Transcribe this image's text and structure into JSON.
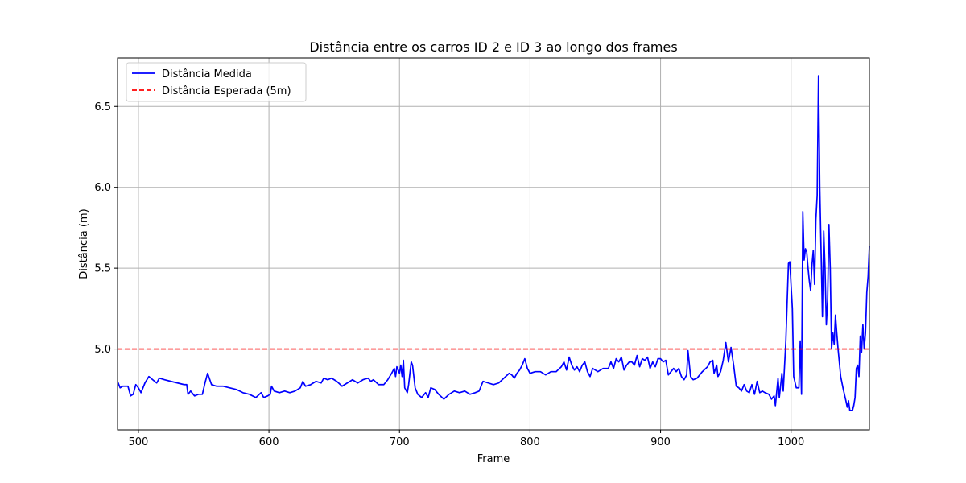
{
  "chart_data": {
    "type": "line",
    "title": "Distância entre os carros ID 2 e ID 3 ao longo dos frames",
    "xlabel": "Frame",
    "ylabel": "Distância (m)",
    "xlim": [
      484,
      1060
    ],
    "ylim": [
      4.5,
      6.8
    ],
    "xticks": [
      500,
      600,
      700,
      800,
      900,
      1000
    ],
    "yticks": [
      5.0,
      5.5,
      6.0,
      6.5
    ],
    "grid": true,
    "legend_position": "top-left",
    "colors": {
      "measured": "#0000ff",
      "expected": "#ff0000",
      "grid": "#b0b0b0"
    },
    "series": [
      {
        "name": "Distância Medida",
        "style": "solid",
        "points": [
          [
            484,
            4.8
          ],
          [
            486,
            4.76
          ],
          [
            488,
            4.77
          ],
          [
            490,
            4.77
          ],
          [
            492,
            4.77
          ],
          [
            494,
            4.71
          ],
          [
            496,
            4.72
          ],
          [
            498,
            4.78
          ],
          [
            500,
            4.76
          ],
          [
            502,
            4.73
          ],
          [
            505,
            4.79
          ],
          [
            508,
            4.83
          ],
          [
            511,
            4.81
          ],
          [
            514,
            4.79
          ],
          [
            516,
            4.82
          ],
          [
            520,
            4.81
          ],
          [
            525,
            4.8
          ],
          [
            530,
            4.79
          ],
          [
            535,
            4.78
          ],
          [
            537,
            4.78
          ],
          [
            538,
            4.72
          ],
          [
            540,
            4.74
          ],
          [
            543,
            4.71
          ],
          [
            546,
            4.72
          ],
          [
            549,
            4.72
          ],
          [
            551,
            4.79
          ],
          [
            553,
            4.85
          ],
          [
            556,
            4.78
          ],
          [
            560,
            4.77
          ],
          [
            565,
            4.77
          ],
          [
            570,
            4.76
          ],
          [
            575,
            4.75
          ],
          [
            580,
            4.73
          ],
          [
            585,
            4.72
          ],
          [
            590,
            4.7
          ],
          [
            594,
            4.73
          ],
          [
            596,
            4.7
          ],
          [
            599,
            4.71
          ],
          [
            601,
            4.72
          ],
          [
            602,
            4.77
          ],
          [
            604,
            4.74
          ],
          [
            608,
            4.73
          ],
          [
            612,
            4.74
          ],
          [
            616,
            4.73
          ],
          [
            620,
            4.74
          ],
          [
            624,
            4.76
          ],
          [
            626,
            4.8
          ],
          [
            628,
            4.77
          ],
          [
            632,
            4.78
          ],
          [
            636,
            4.8
          ],
          [
            640,
            4.79
          ],
          [
            642,
            4.82
          ],
          [
            645,
            4.81
          ],
          [
            648,
            4.82
          ],
          [
            652,
            4.8
          ],
          [
            656,
            4.77
          ],
          [
            660,
            4.79
          ],
          [
            664,
            4.81
          ],
          [
            668,
            4.79
          ],
          [
            672,
            4.81
          ],
          [
            676,
            4.82
          ],
          [
            678,
            4.8
          ],
          [
            680,
            4.81
          ],
          [
            684,
            4.78
          ],
          [
            688,
            4.78
          ],
          [
            691,
            4.81
          ],
          [
            694,
            4.85
          ],
          [
            696,
            4.88
          ],
          [
            697,
            4.83
          ],
          [
            698,
            4.89
          ],
          [
            700,
            4.85
          ],
          [
            701,
            4.9
          ],
          [
            702,
            4.83
          ],
          [
            703,
            4.93
          ],
          [
            704,
            4.76
          ],
          [
            706,
            4.73
          ],
          [
            707,
            4.78
          ],
          [
            709,
            4.92
          ],
          [
            710,
            4.9
          ],
          [
            712,
            4.76
          ],
          [
            714,
            4.72
          ],
          [
            717,
            4.7
          ],
          [
            720,
            4.73
          ],
          [
            722,
            4.7
          ],
          [
            724,
            4.76
          ],
          [
            727,
            4.75
          ],
          [
            730,
            4.72
          ],
          [
            734,
            4.69
          ],
          [
            738,
            4.72
          ],
          [
            742,
            4.74
          ],
          [
            746,
            4.73
          ],
          [
            750,
            4.74
          ],
          [
            754,
            4.72
          ],
          [
            758,
            4.73
          ],
          [
            761,
            4.74
          ],
          [
            764,
            4.8
          ],
          [
            768,
            4.79
          ],
          [
            772,
            4.78
          ],
          [
            776,
            4.79
          ],
          [
            780,
            4.82
          ],
          [
            784,
            4.85
          ],
          [
            786,
            4.84
          ],
          [
            788,
            4.82
          ],
          [
            790,
            4.85
          ],
          [
            792,
            4.87
          ],
          [
            794,
            4.9
          ],
          [
            796,
            4.94
          ],
          [
            798,
            4.88
          ],
          [
            800,
            4.85
          ],
          [
            804,
            4.86
          ],
          [
            808,
            4.86
          ],
          [
            812,
            4.84
          ],
          [
            816,
            4.86
          ],
          [
            820,
            4.86
          ],
          [
            824,
            4.89
          ],
          [
            826,
            4.92
          ],
          [
            828,
            4.87
          ],
          [
            830,
            4.95
          ],
          [
            832,
            4.9
          ],
          [
            834,
            4.87
          ],
          [
            836,
            4.89
          ],
          [
            838,
            4.86
          ],
          [
            840,
            4.9
          ],
          [
            842,
            4.92
          ],
          [
            844,
            4.86
          ],
          [
            846,
            4.83
          ],
          [
            848,
            4.88
          ],
          [
            852,
            4.86
          ],
          [
            856,
            4.88
          ],
          [
            860,
            4.88
          ],
          [
            862,
            4.92
          ],
          [
            864,
            4.88
          ],
          [
            866,
            4.94
          ],
          [
            868,
            4.92
          ],
          [
            870,
            4.95
          ],
          [
            872,
            4.87
          ],
          [
            874,
            4.9
          ],
          [
            876,
            4.92
          ],
          [
            878,
            4.92
          ],
          [
            880,
            4.9
          ],
          [
            882,
            4.96
          ],
          [
            884,
            4.89
          ],
          [
            886,
            4.94
          ],
          [
            888,
            4.93
          ],
          [
            890,
            4.95
          ],
          [
            892,
            4.88
          ],
          [
            894,
            4.92
          ],
          [
            896,
            4.89
          ],
          [
            898,
            4.94
          ],
          [
            900,
            4.94
          ],
          [
            902,
            4.92
          ],
          [
            904,
            4.93
          ],
          [
            906,
            4.84
          ],
          [
            908,
            4.86
          ],
          [
            910,
            4.88
          ],
          [
            912,
            4.86
          ],
          [
            914,
            4.88
          ],
          [
            916,
            4.83
          ],
          [
            918,
            4.81
          ],
          [
            920,
            4.84
          ],
          [
            921,
            4.99
          ],
          [
            923,
            4.83
          ],
          [
            925,
            4.81
          ],
          [
            928,
            4.82
          ],
          [
            932,
            4.86
          ],
          [
            936,
            4.89
          ],
          [
            938,
            4.92
          ],
          [
            940,
            4.93
          ],
          [
            941,
            4.85
          ],
          [
            943,
            4.9
          ],
          [
            944,
            4.83
          ],
          [
            946,
            4.86
          ],
          [
            948,
            4.93
          ],
          [
            950,
            5.04
          ],
          [
            952,
            4.92
          ],
          [
            954,
            5.01
          ],
          [
            956,
            4.9
          ],
          [
            958,
            4.77
          ],
          [
            960,
            4.76
          ],
          [
            962,
            4.74
          ],
          [
            964,
            4.78
          ],
          [
            966,
            4.74
          ],
          [
            968,
            4.73
          ],
          [
            970,
            4.78
          ],
          [
            972,
            4.72
          ],
          [
            974,
            4.8
          ],
          [
            976,
            4.73
          ],
          [
            978,
            4.74
          ],
          [
            980,
            4.73
          ],
          [
            983,
            4.72
          ],
          [
            985,
            4.69
          ],
          [
            987,
            4.71
          ],
          [
            988,
            4.65
          ],
          [
            990,
            4.82
          ],
          [
            991,
            4.7
          ],
          [
            993,
            4.85
          ],
          [
            994,
            4.74
          ],
          [
            996,
            5.05
          ],
          [
            998,
            5.53
          ],
          [
            999,
            5.54
          ],
          [
            1001,
            5.25
          ],
          [
            1002,
            4.83
          ],
          [
            1004,
            4.76
          ],
          [
            1006,
            4.76
          ],
          [
            1007,
            5.05
          ],
          [
            1008,
            4.72
          ],
          [
            1009,
            5.85
          ],
          [
            1010,
            5.55
          ],
          [
            1011,
            5.62
          ],
          [
            1012,
            5.6
          ],
          [
            1013,
            5.5
          ],
          [
            1014,
            5.42
          ],
          [
            1015,
            5.36
          ],
          [
            1016,
            5.52
          ],
          [
            1017,
            5.61
          ],
          [
            1018,
            5.4
          ],
          [
            1019,
            5.8
          ],
          [
            1020,
            5.95
          ],
          [
            1021,
            6.69
          ],
          [
            1022,
            6.0
          ],
          [
            1024,
            5.2
          ],
          [
            1025,
            5.73
          ],
          [
            1026,
            5.5
          ],
          [
            1027,
            5.15
          ],
          [
            1028,
            5.3
          ],
          [
            1029,
            5.77
          ],
          [
            1030,
            5.5
          ],
          [
            1031,
            5.0
          ],
          [
            1032,
            5.1
          ],
          [
            1033,
            5.03
          ],
          [
            1034,
            5.21
          ],
          [
            1035,
            5.1
          ],
          [
            1036,
            5.0
          ],
          [
            1038,
            4.83
          ],
          [
            1040,
            4.75
          ],
          [
            1042,
            4.68
          ],
          [
            1043,
            4.64
          ],
          [
            1044,
            4.68
          ],
          [
            1045,
            4.62
          ],
          [
            1047,
            4.62
          ],
          [
            1048,
            4.65
          ],
          [
            1049,
            4.7
          ],
          [
            1050,
            4.88
          ],
          [
            1051,
            4.9
          ],
          [
            1052,
            4.83
          ],
          [
            1053,
            5.08
          ],
          [
            1054,
            4.98
          ],
          [
            1055,
            5.15
          ],
          [
            1056,
            5.0
          ],
          [
            1057,
            5.1
          ],
          [
            1058,
            5.35
          ],
          [
            1059,
            5.45
          ],
          [
            1060,
            5.64
          ]
        ]
      },
      {
        "name": "Distância Esperada (5m)",
        "style": "dashed",
        "constant": 5.0
      }
    ]
  }
}
